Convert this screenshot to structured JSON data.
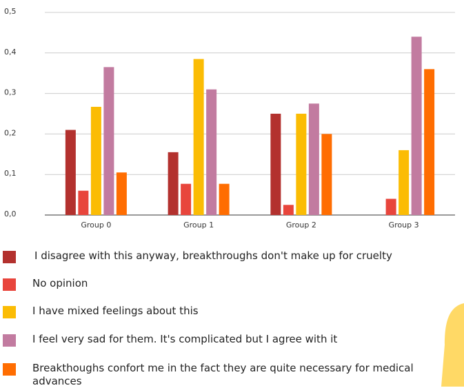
{
  "chart_data": {
    "type": "bar",
    "categories": [
      "Group 0",
      "Group 1",
      "Group 2",
      "Group 3"
    ],
    "series": [
      {
        "name": "I disagree with this anyway, breakthroughs don't make up for cruelty",
        "color": "#b3312e",
        "values": [
          0.21,
          0.155,
          0.25,
          0
        ]
      },
      {
        "name": "No opinion",
        "color": "#e8453c",
        "values": [
          0.06,
          0.077,
          0.025,
          0.04
        ]
      },
      {
        "name": "I have mixed feelings about this",
        "color": "#fbbc04",
        "values": [
          0.267,
          0.385,
          0.25,
          0.16
        ]
      },
      {
        "name": "I feel very sad for them. It's complicated but I agree with it",
        "color": "#c27ba0",
        "values": [
          0.365,
          0.31,
          0.275,
          0.44
        ]
      },
      {
        "name": "Breakthoughs confort me in the fact they are quite necessary for medical advances",
        "color": "#ff6d01",
        "values": [
          0.105,
          0.077,
          0.2,
          0.36
        ]
      }
    ],
    "ylim": [
      0,
      0.5
    ],
    "yticks": [
      {
        "value": 0,
        "label": "0,0"
      },
      {
        "value": 0.1,
        "label": "0,1"
      },
      {
        "value": 0.2,
        "label": "0,2"
      },
      {
        "value": 0.3,
        "label": "0,3"
      },
      {
        "value": 0.4,
        "label": "0,4"
      },
      {
        "value": 0.5,
        "label": "0,5"
      }
    ],
    "grid": true
  }
}
